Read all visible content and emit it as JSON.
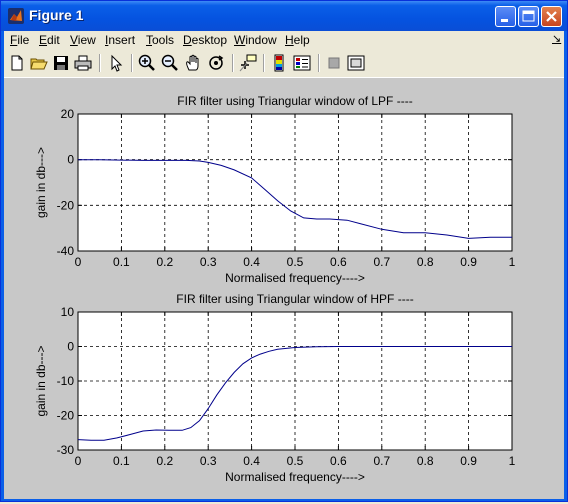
{
  "window": {
    "title": "Figure 1"
  },
  "menu": {
    "items": [
      "File",
      "Edit",
      "View",
      "Insert",
      "Tools",
      "Desktop",
      "Window",
      "Help"
    ],
    "arrow": "↘"
  },
  "toolbar": {
    "icons": [
      "new-figure-icon",
      "open-file-icon",
      "save-icon",
      "print-icon",
      "select-arrow-icon",
      "zoom-in-icon",
      "zoom-out-icon",
      "pan-hand-icon",
      "rotate-3d-icon",
      "data-cursor-icon",
      "colorbar-icon",
      "legend-icon",
      "hide-plot-tools-icon",
      "show-plot-tools-icon"
    ]
  },
  "chart_data": [
    {
      "type": "line",
      "title": "FIR filter using Triangular window of LPF ----",
      "xlabel": "Normalised frequency---->",
      "ylabel": "gain in db--->",
      "xlim": [
        0,
        1
      ],
      "ylim": [
        -40,
        20
      ],
      "xticks": [
        "0",
        "0.1",
        "0.2",
        "0.3",
        "0.4",
        "0.5",
        "0.6",
        "0.7",
        "0.8",
        "0.9",
        "1"
      ],
      "yticks": [
        "20",
        "0",
        "-20",
        "-40"
      ],
      "grid": true,
      "line_color": "#00008B",
      "x": [
        0,
        0.05,
        0.1,
        0.15,
        0.2,
        0.25,
        0.28,
        0.3,
        0.33,
        0.36,
        0.4,
        0.43,
        0.46,
        0.49,
        0.52,
        0.55,
        0.58,
        0.62,
        0.65,
        0.7,
        0.75,
        0.8,
        0.85,
        0.9,
        0.95,
        1.0
      ],
      "y": [
        0,
        0,
        -0.2,
        -0.3,
        -0.3,
        -0.3,
        -0.6,
        -1.2,
        -2.5,
        -4.5,
        -8,
        -13,
        -18,
        -22.5,
        -25.5,
        -26,
        -26,
        -26.5,
        -28,
        -30.5,
        -32,
        -32,
        -33,
        -34.5,
        -34,
        -34
      ]
    },
    {
      "type": "line",
      "title": "FIR filter using Triangular window of HPF ----",
      "xlabel": "Normalised frequency---->",
      "ylabel": "gain in db--->",
      "xlim": [
        0,
        1
      ],
      "ylim": [
        -30,
        10
      ],
      "xticks": [
        "0",
        "0.1",
        "0.2",
        "0.3",
        "0.4",
        "0.5",
        "0.6",
        "0.7",
        "0.8",
        "0.9",
        "1"
      ],
      "yticks": [
        "10",
        "0",
        "-10",
        "-20",
        "-30"
      ],
      "grid": true,
      "line_color": "#00008B",
      "x": [
        0,
        0.03,
        0.06,
        0.09,
        0.12,
        0.15,
        0.18,
        0.21,
        0.24,
        0.26,
        0.28,
        0.3,
        0.32,
        0.34,
        0.36,
        0.38,
        0.4,
        0.42,
        0.44,
        0.46,
        0.5,
        0.55,
        0.6,
        0.7,
        0.8,
        0.9,
        1.0
      ],
      "y": [
        -27,
        -27.2,
        -27.2,
        -26.5,
        -25.5,
        -24.5,
        -24.2,
        -24.3,
        -24.3,
        -23.5,
        -21.5,
        -18,
        -14,
        -10.5,
        -7.5,
        -5,
        -3.3,
        -2.2,
        -1.4,
        -0.8,
        -0.3,
        -0.1,
        0,
        0,
        0,
        0,
        0
      ]
    }
  ]
}
